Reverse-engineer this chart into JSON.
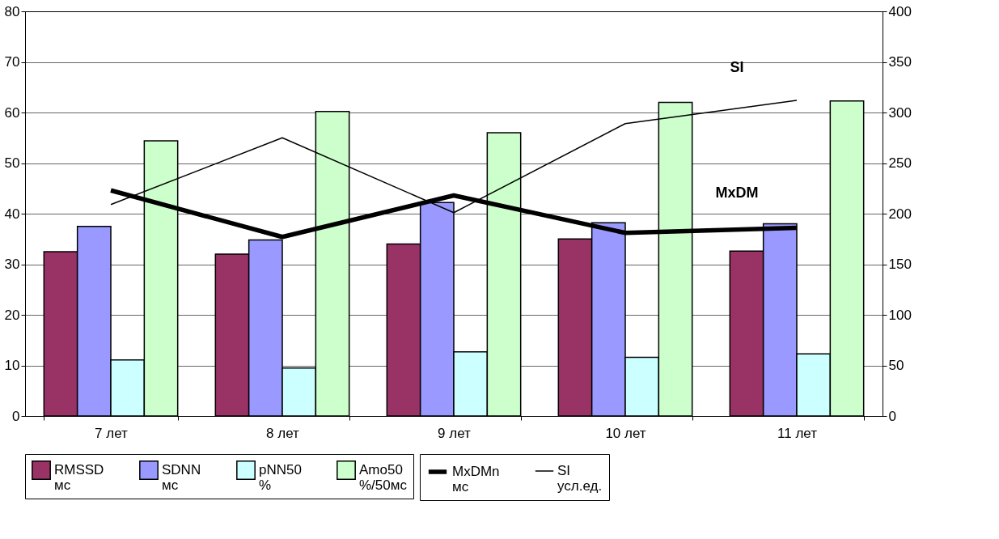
{
  "chart_data": {
    "type": "bar",
    "categories": [
      "7 лет",
      "8 лет",
      "9 лет",
      "10 лет",
      "11 лет"
    ],
    "series": [
      {
        "name": "RMSSD\nмс",
        "color": "#993366",
        "values": [
          32.5,
          32,
          34,
          35,
          32.6
        ]
      },
      {
        "name": "SDNN\nмс",
        "color": "#9999ff",
        "values": [
          37.5,
          34.8,
          42.2,
          38.2,
          38
        ]
      },
      {
        "name": "pNN50\n%",
        "color": "#ccffff",
        "values": [
          11.1,
          9.5,
          12.7,
          11.6,
          12.3
        ]
      },
      {
        "name": "Amo50\n%/50мс",
        "color": "#ccffcc",
        "values": [
          54.4,
          60.2,
          56,
          62,
          62.3
        ]
      },
      {
        "name": "MxDMn\nмс",
        "type": "line",
        "axis": "y2",
        "color": "#000000",
        "values": [
          223,
          177,
          218,
          181,
          186
        ]
      },
      {
        "name": "SI\nусл.ед.",
        "type": "line",
        "axis": "y2",
        "color": "#000000",
        "values": [
          209,
          275,
          201,
          289,
          312
        ]
      }
    ],
    "ylim": [
      0,
      80
    ],
    "yticks": [
      0,
      10,
      20,
      30,
      40,
      50,
      60,
      70,
      80
    ],
    "y2lim": [
      0,
      400
    ],
    "y2ticks": [
      0,
      50,
      100,
      150,
      200,
      250,
      300,
      350,
      400
    ],
    "annotations": [
      "SI",
      "MxDM"
    ],
    "grid": "y",
    "legend": "bottom"
  }
}
